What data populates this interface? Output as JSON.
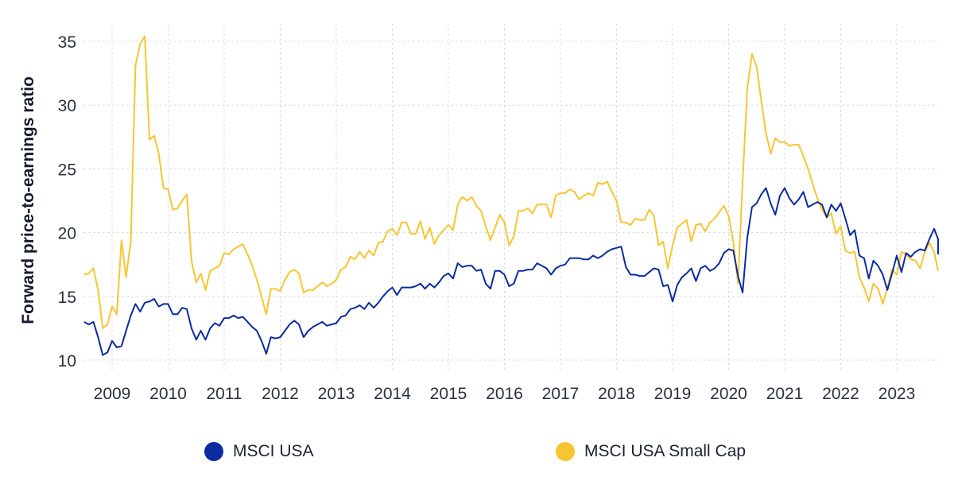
{
  "chart_data": {
    "type": "line",
    "title": "",
    "xlabel": "",
    "ylabel": "Forward price-to-earnings ratio",
    "ylim": [
      9,
      36
    ],
    "xlim": [
      2008.5,
      2023.67
    ],
    "yticks": [
      10,
      15,
      20,
      25,
      30,
      35
    ],
    "xticks": [
      "2009",
      "2010",
      "2011",
      "2012",
      "2013",
      "2014",
      "2015",
      "2016",
      "2017",
      "2018",
      "2019",
      "2020",
      "2021",
      "2022",
      "2023"
    ],
    "grid": true,
    "legend_position": "bottom",
    "x_start": 2008.5,
    "x_step": 0.08333,
    "series": [
      {
        "name": "MSCI USA",
        "color": "#0b2b9e",
        "values": [
          13.0,
          12.8,
          13.0,
          11.8,
          10.4,
          10.6,
          11.5,
          11.0,
          11.1,
          12.3,
          13.5,
          14.4,
          13.8,
          14.5,
          14.6,
          14.8,
          14.2,
          14.4,
          14.4,
          13.6,
          13.6,
          14.1,
          14.0,
          12.5,
          11.6,
          12.3,
          11.6,
          12.5,
          12.9,
          12.7,
          13.3,
          13.3,
          13.5,
          13.3,
          13.4,
          13.0,
          12.6,
          12.3,
          11.5,
          10.5,
          11.8,
          11.7,
          11.8,
          12.3,
          12.8,
          13.1,
          12.8,
          11.8,
          12.3,
          12.6,
          12.8,
          13.0,
          12.7,
          12.8,
          12.9,
          13.4,
          13.5,
          14.0,
          14.1,
          14.3,
          14.0,
          14.5,
          14.1,
          14.5,
          15.0,
          15.4,
          15.7,
          15.1,
          15.7,
          15.7,
          15.7,
          15.8,
          16.0,
          15.6,
          16.0,
          15.7,
          16.1,
          16.6,
          16.8,
          16.4,
          17.6,
          17.3,
          17.4,
          17.4,
          17.0,
          17.1,
          16.0,
          15.6,
          17.0,
          17.0,
          16.7,
          15.8,
          16.0,
          17.0,
          17.0,
          17.1,
          17.1,
          17.6,
          17.4,
          17.2,
          16.7,
          17.2,
          17.4,
          17.5,
          18.0,
          18.0,
          18.0,
          17.9,
          17.9,
          18.2,
          18.0,
          18.2,
          18.5,
          18.7,
          18.8,
          18.9,
          17.3,
          16.7,
          16.7,
          16.6,
          16.6,
          16.9,
          17.2,
          17.1,
          15.8,
          15.9,
          14.6,
          15.9,
          16.5,
          16.8,
          17.2,
          16.2,
          17.2,
          17.4,
          17.0,
          17.2,
          17.6,
          18.4,
          18.7,
          18.6,
          16.6,
          15.3,
          19.6,
          22.0,
          22.3,
          23.0,
          23.5,
          22.3,
          21.4,
          22.9,
          23.5,
          22.7,
          22.2,
          22.6,
          23.2,
          22.0,
          22.2,
          22.4,
          22.2,
          21.2,
          22.2,
          21.7,
          22.3,
          21.1,
          19.8,
          20.2,
          18.2,
          18.0,
          16.4,
          17.8,
          17.4,
          16.7,
          15.5,
          16.8,
          18.2,
          16.9,
          18.4,
          18.1,
          18.5,
          18.7,
          18.6,
          19.5,
          20.3,
          19.5,
          18.3
        ]
      },
      {
        "name": "MSCI USA Small Cap",
        "color": "#f7c531",
        "values": [
          16.7,
          16.8,
          17.2,
          15.5,
          12.5,
          12.8,
          14.2,
          13.6,
          19.4,
          16.5,
          19.3,
          33.1,
          34.8,
          35.4,
          27.3,
          27.6,
          26.2,
          23.5,
          23.4,
          21.8,
          21.9,
          22.5,
          23.0,
          17.8,
          16.1,
          16.8,
          15.5,
          17.0,
          17.2,
          17.4,
          18.4,
          18.3,
          18.7,
          18.9,
          19.1,
          18.3,
          17.4,
          16.3,
          15.0,
          13.6,
          15.6,
          15.6,
          15.4,
          16.3,
          16.9,
          17.1,
          16.8,
          15.3,
          15.5,
          15.5,
          15.8,
          16.1,
          15.8,
          16.0,
          16.3,
          17.1,
          17.3,
          18.1,
          17.9,
          18.5,
          18.0,
          18.6,
          18.2,
          19.2,
          19.3,
          20.1,
          20.3,
          19.8,
          20.8,
          20.8,
          19.9,
          19.9,
          20.9,
          19.5,
          20.4,
          19.1,
          19.8,
          20.2,
          20.6,
          20.2,
          22.2,
          22.8,
          22.5,
          22.8,
          22.1,
          21.7,
          20.5,
          19.4,
          20.4,
          21.4,
          20.8,
          19.0,
          19.7,
          21.7,
          21.7,
          21.9,
          21.5,
          22.2,
          22.2,
          22.2,
          21.2,
          22.9,
          23.1,
          23.1,
          23.4,
          23.2,
          22.6,
          22.9,
          23.1,
          22.9,
          23.9,
          23.8,
          24.0,
          23.2,
          22.5,
          20.8,
          20.8,
          20.6,
          21.1,
          21.0,
          21.0,
          21.8,
          21.3,
          19.0,
          19.3,
          17.2,
          19.0,
          20.4,
          20.7,
          21.0,
          19.3,
          20.6,
          20.7,
          20.1,
          20.8,
          21.1,
          21.6,
          22.1,
          21.3,
          19.3,
          16.0,
          24.0,
          31.3,
          34.0,
          33.0,
          30.3,
          27.8,
          26.2,
          27.4,
          27.1,
          27.1,
          26.8,
          26.9,
          26.9,
          26.0,
          25.0,
          23.8,
          22.7,
          21.8,
          21.2,
          21.5,
          19.9,
          20.5,
          18.6,
          18.4,
          18.5,
          16.5,
          15.7,
          14.6,
          16.0,
          15.6,
          14.4,
          15.7,
          17.1,
          16.7,
          18.5,
          18.3,
          17.9,
          17.8,
          17.2,
          18.5,
          19.2,
          18.5,
          17.0
        ]
      }
    ]
  }
}
